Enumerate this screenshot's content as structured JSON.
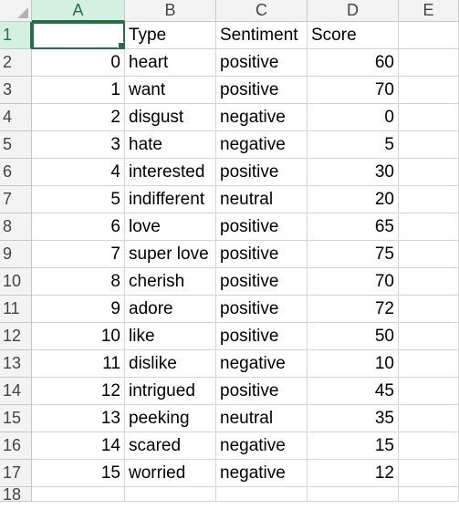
{
  "columns": [
    "A",
    "B",
    "C",
    "D",
    "E"
  ],
  "header_row": {
    "row_num": "1",
    "a": "",
    "b": "Type",
    "c": "Sentiment",
    "d": "Score",
    "e": ""
  },
  "rows": [
    {
      "row_num": "2",
      "a": "0",
      "b": "heart",
      "c": "positive",
      "d": "60"
    },
    {
      "row_num": "3",
      "a": "1",
      "b": "want",
      "c": "positive",
      "d": "70"
    },
    {
      "row_num": "4",
      "a": "2",
      "b": "disgust",
      "c": "negative",
      "d": "0"
    },
    {
      "row_num": "5",
      "a": "3",
      "b": "hate",
      "c": "negative",
      "d": "5"
    },
    {
      "row_num": "6",
      "a": "4",
      "b": "interested",
      "c": "positive",
      "d": "30"
    },
    {
      "row_num": "7",
      "a": "5",
      "b": "indifferent",
      "c": "neutral",
      "d": "20"
    },
    {
      "row_num": "8",
      "a": "6",
      "b": "love",
      "c": "positive",
      "d": "65"
    },
    {
      "row_num": "9",
      "a": "7",
      "b": "super love",
      "c": "positive",
      "d": "75"
    },
    {
      "row_num": "10",
      "a": "8",
      "b": "cherish",
      "c": "positive",
      "d": "70"
    },
    {
      "row_num": "11",
      "a": "9",
      "b": "adore",
      "c": "positive",
      "d": "72"
    },
    {
      "row_num": "12",
      "a": "10",
      "b": "like",
      "c": "positive",
      "d": "50"
    },
    {
      "row_num": "13",
      "a": "11",
      "b": "dislike",
      "c": "negative",
      "d": "10"
    },
    {
      "row_num": "14",
      "a": "12",
      "b": "intrigued",
      "c": "positive",
      "d": "45"
    },
    {
      "row_num": "15",
      "a": "13",
      "b": "peeking",
      "c": "neutral",
      "d": "35"
    },
    {
      "row_num": "16",
      "a": "14",
      "b": "scared",
      "c": "negative",
      "d": "15"
    },
    {
      "row_num": "17",
      "a": "15",
      "b": "worried",
      "c": "negative",
      "d": "12"
    }
  ],
  "last_row_num": "18",
  "colors": {
    "accent": "#217346",
    "header_bg": "#f3f3f3",
    "selected_header_bg": "#d3f0e0",
    "gridline": "#d4d4d4"
  }
}
